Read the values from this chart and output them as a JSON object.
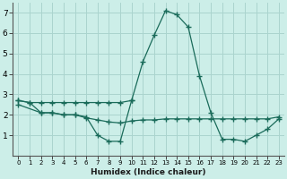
{
  "xlabel": "Humidex (Indice chaleur)",
  "background_color": "#cceee8",
  "grid_color": "#aad4ce",
  "line_color": "#1a6b5a",
  "x_values": [
    0,
    1,
    2,
    3,
    4,
    5,
    6,
    7,
    8,
    9,
    10,
    11,
    12,
    13,
    14,
    15,
    16,
    17,
    18,
    19,
    20,
    21,
    22,
    23
  ],
  "line1_y": [
    2.7,
    2.6,
    2.1,
    2.1,
    2.0,
    2.0,
    1.9,
    1.0,
    0.7,
    0.7,
    2.7,
    4.6,
    5.9,
    7.1,
    6.9,
    6.3,
    3.9,
    2.1,
    0.8,
    0.8,
    0.7,
    1.0,
    1.3,
    1.8
  ],
  "line2_y": [
    2.7,
    2.6,
    2.6,
    2.6,
    2.6,
    2.6,
    2.6,
    2.6,
    2.6,
    2.6,
    2.7,
    null,
    null,
    null,
    null,
    null,
    null,
    null,
    null,
    null,
    null,
    null,
    null,
    null
  ],
  "line3_y": [
    2.5,
    null,
    2.1,
    2.1,
    2.0,
    2.0,
    1.85,
    1.75,
    1.65,
    1.6,
    1.7,
    1.75,
    1.75,
    1.8,
    1.8,
    1.8,
    1.8,
    1.8,
    1.8,
    1.8,
    1.8,
    1.8,
    1.8,
    1.9
  ],
  "ylim": [
    0,
    7.5
  ],
  "xlim": [
    -0.5,
    23.5
  ],
  "yticks": [
    1,
    2,
    3,
    4,
    5,
    6,
    7
  ],
  "xticks": [
    0,
    1,
    2,
    3,
    4,
    5,
    6,
    7,
    8,
    9,
    10,
    11,
    12,
    13,
    14,
    15,
    16,
    17,
    18,
    19,
    20,
    21,
    22,
    23
  ]
}
